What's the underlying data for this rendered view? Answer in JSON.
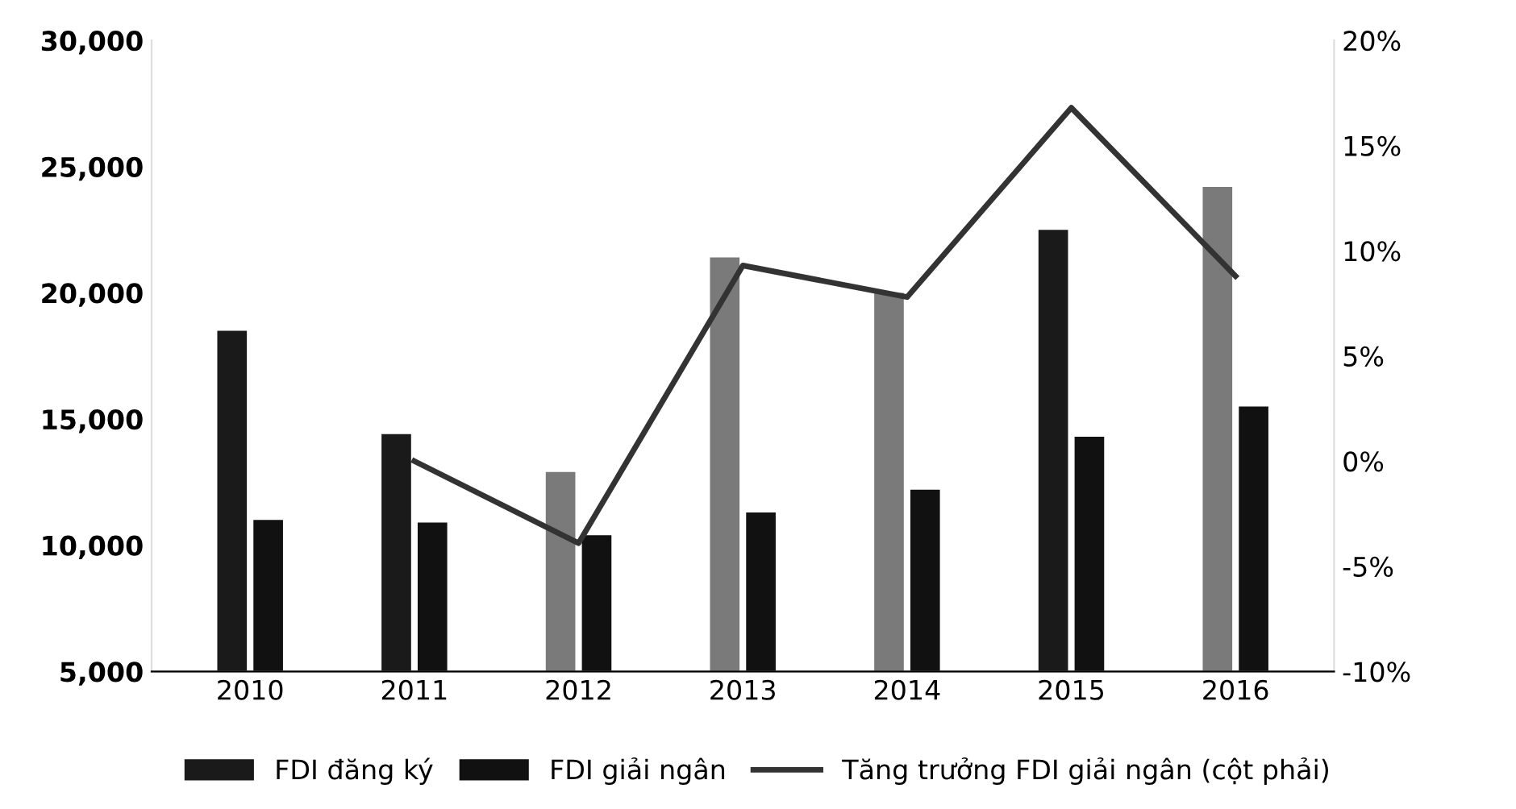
{
  "chart_data": {
    "type": "bar",
    "categories": [
      "2010",
      "2011",
      "2012",
      "2013",
      "2014",
      "2015",
      "2016"
    ],
    "series": [
      {
        "name": "FDI đăng ký",
        "color": "#1a1a1a",
        "colors": [
          "#1a1a1a",
          "#1a1a1a",
          "#7a7a7a",
          "#7a7a7a",
          "#7a7a7a",
          "#1a1a1a",
          "#7a7a7a"
        ],
        "values": [
          18500,
          14400,
          12900,
          21400,
          20000,
          22500,
          24200
        ]
      },
      {
        "name": "FDI giải ngân",
        "color": "#111111",
        "values": [
          11000,
          10900,
          10400,
          11300,
          12200,
          14300,
          15500
        ]
      },
      {
        "name": "Tăng trưởng FDI giải ngân (cột phải)",
        "type": "line",
        "axis": "y2",
        "color": "#333333",
        "values": [
          null,
          0,
          -3.9,
          9.3,
          7.8,
          16.8,
          8.8
        ]
      }
    ],
    "ylim": [
      5000,
      30000
    ],
    "yticks": [
      {
        "value": 5000,
        "label": "5,000"
      },
      {
        "value": 10000,
        "label": "10,000"
      },
      {
        "value": 15000,
        "label": "15,000"
      },
      {
        "value": 20000,
        "label": "20,000"
      },
      {
        "value": 25000,
        "label": "25,000"
      },
      {
        "value": 30000,
        "label": "30,000"
      }
    ],
    "y2lim": [
      -10,
      20
    ],
    "y2ticks": [
      {
        "value": -10,
        "label": "-10%"
      },
      {
        "value": -5,
        "label": "-5%"
      },
      {
        "value": 0,
        "label": "0%"
      },
      {
        "value": 5,
        "label": "5%"
      },
      {
        "value": 10,
        "label": "10%"
      },
      {
        "value": 15,
        "label": "15%"
      },
      {
        "value": 20,
        "label": "20%"
      }
    ],
    "legend": "bottom",
    "marker": "none",
    "line_style": "solid"
  }
}
